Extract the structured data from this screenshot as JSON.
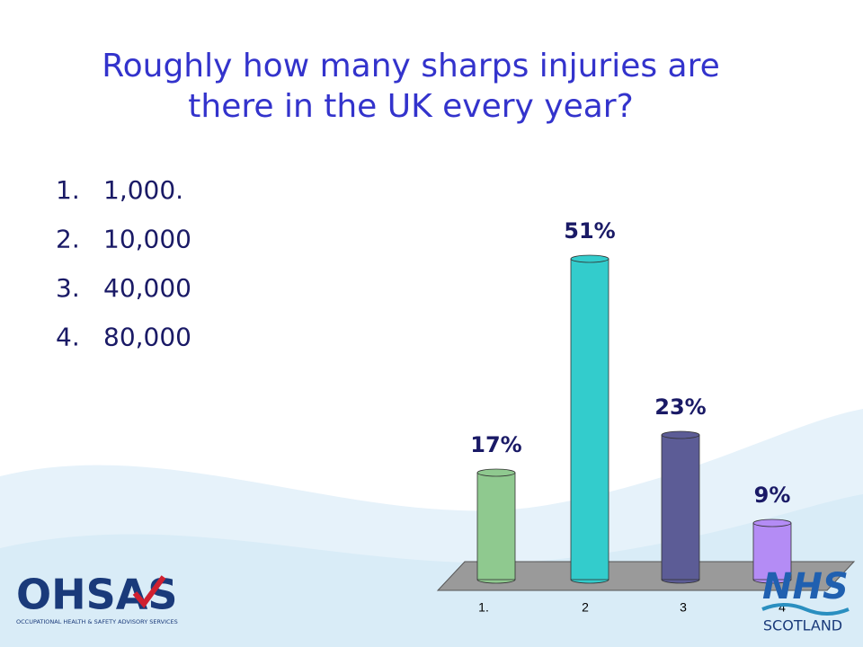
{
  "chart_data": {
    "type": "bar",
    "title": [
      "Roughly how many sharps injuries are",
      "there in the UK every year?"
    ],
    "categories": [
      "1.",
      "2",
      "3",
      "4"
    ],
    "values": [
      17,
      51,
      23,
      9
    ],
    "value_labels": [
      "17%",
      "51%",
      "23%",
      "9%"
    ],
    "colors": [
      "#8fc98f",
      "#33cccc",
      "#5c5c96",
      "#b48cf5"
    ]
  },
  "list": [
    "1.",
    "1,000.",
    "2.",
    "10,000",
    "3.",
    "40,000",
    "4.",
    "80,000"
  ],
  "logos": {
    "left": "OHSAS",
    "left_caption": "OCCUPATIONAL HEALTH & SAFETY ADVISORY SERVICES",
    "right": "NHS",
    "right_caption": "SCOTLAND"
  }
}
